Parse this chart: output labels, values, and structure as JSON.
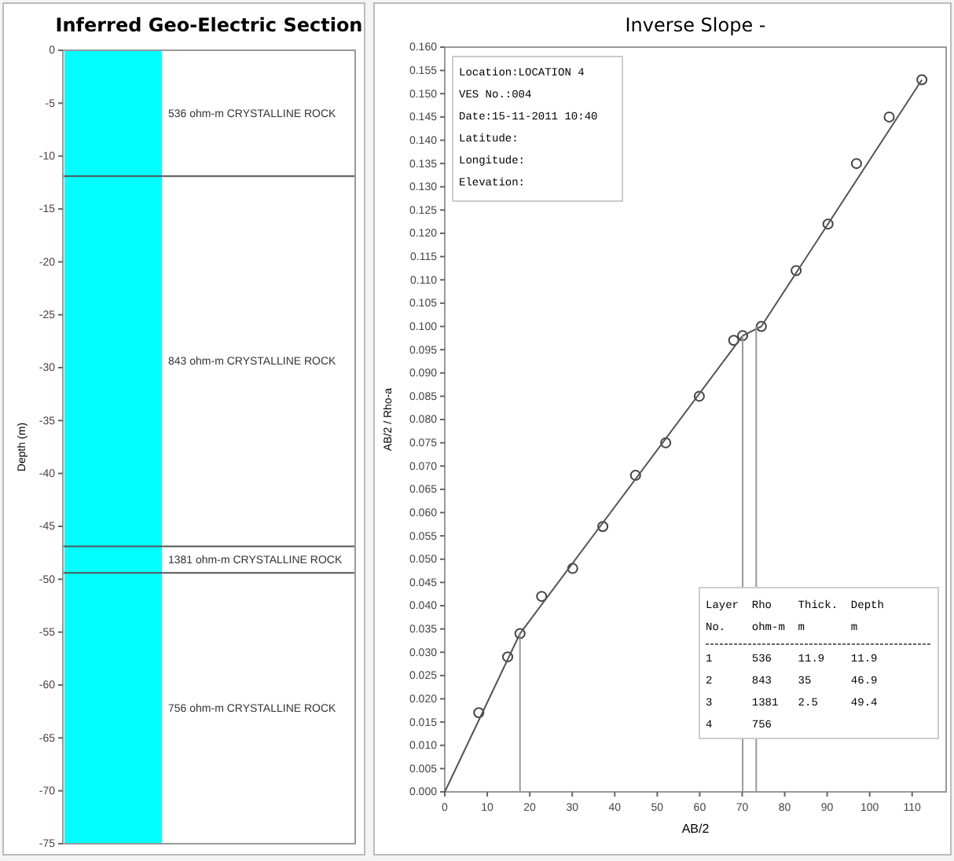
{
  "chart_data": [
    {
      "type": "bar",
      "stacked": true,
      "title": "Inferred Geo-Electric Section",
      "ylabel": "Depth (m)",
      "categories": [
        null
      ],
      "series": [
        {
          "name": "536 ohm-m CRYSTALLINE ROCK",
          "color": "#00ffff",
          "values": [
            -11.9
          ]
        },
        {
          "name": "843 ohm-m CRYSTALLINE ROCK",
          "color": "#00ffff",
          "values": [
            -35
          ]
        },
        {
          "name": "1381 ohm-m CRYSTALLINE ROCK",
          "color": "#00ffff",
          "values": [
            -2.5
          ]
        },
        {
          "name": "756 ohm-m CRYSTALLINE ROCK",
          "color": "#00ffff",
          "values": [
            -25.6
          ]
        }
      ],
      "ylim": [
        -75,
        0
      ],
      "yticks": [
        0,
        -5,
        -10,
        -15,
        -20,
        -25,
        -30,
        -35,
        -40,
        -45,
        -50,
        -55,
        -60,
        -65,
        -70,
        -75
      ],
      "ref_lines": [
        {
          "axis": "y",
          "value": -11.9,
          "color": "#555555"
        },
        {
          "axis": "y",
          "value": -46.9,
          "color": "#555555"
        },
        {
          "axis": "y",
          "value": -49.4,
          "color": "#555555"
        }
      ],
      "legend": false,
      "grid": false
    },
    {
      "type": "scatter",
      "title": "Inverse Slope -",
      "xlabel": "AB/2",
      "ylabel": "AB/2 / Rho-a",
      "marker": "circle",
      "legend": false,
      "grid": false,
      "series": [
        {
          "type": "scatter",
          "color": "#444444",
          "x": [
            8.0,
            14.8,
            17.7,
            22.8,
            30.1,
            37.2,
            44.9,
            52.0,
            59.9,
            68.0,
            70.1,
            74.5,
            82.7,
            90.2,
            96.9,
            104.6,
            112.3
          ],
          "values": [
            0.017,
            0.029,
            0.034,
            0.042,
            0.048,
            0.057,
            0.068,
            0.075,
            0.085,
            0.097,
            0.098,
            0.1,
            0.112,
            0.122,
            0.135,
            0.145,
            0.153
          ]
        },
        {
          "type": "line",
          "marker": "none",
          "color": "#555555",
          "x": [
            0,
            17.7,
            70.1,
            74.5,
            112.3
          ],
          "values": [
            0,
            0.034,
            0.098,
            0.1,
            0.153
          ]
        },
        {
          "type": "line",
          "marker": "none",
          "color": "#999999",
          "x": [
            17.7,
            17.7
          ],
          "values": [
            0,
            0.034
          ]
        },
        {
          "type": "line",
          "marker": "none",
          "color": "#999999",
          "x": [
            70.1,
            70.1
          ],
          "values": [
            0,
            0.098
          ]
        },
        {
          "type": "line",
          "marker": "none",
          "color": "#999999",
          "x": [
            73.3,
            73.3
          ],
          "values": [
            0,
            0.1
          ]
        }
      ],
      "xlim": [
        0,
        118
      ],
      "xticks": [
        0,
        10,
        20,
        30,
        40,
        50,
        60,
        70,
        80,
        90,
        100,
        110
      ],
      "ylim": [
        0,
        0.16
      ],
      "yticks": [
        {
          "value": 0,
          "label": "0.000"
        },
        0.005,
        {
          "value": 0.01,
          "label": "0.010"
        },
        0.015,
        {
          "value": 0.02,
          "label": "0.020"
        },
        0.025,
        {
          "value": 0.03,
          "label": "0.030"
        },
        0.035,
        {
          "value": 0.04,
          "label": "0.040"
        },
        0.045,
        {
          "value": 0.05,
          "label": "0.050"
        },
        0.055,
        {
          "value": 0.06,
          "label": "0.060"
        },
        0.065,
        {
          "value": 0.07,
          "label": "0.070"
        },
        0.075,
        {
          "value": 0.08,
          "label": "0.080"
        },
        0.085,
        {
          "value": 0.09,
          "label": "0.090"
        },
        0.095,
        {
          "value": 0.1,
          "label": "0.100"
        },
        0.105,
        {
          "value": 0.11,
          "label": "0.110"
        },
        0.115,
        {
          "value": 0.12,
          "label": "0.120"
        },
        0.125,
        {
          "value": 0.13,
          "label": "0.130"
        },
        0.135,
        {
          "value": 0.14,
          "label": "0.140"
        },
        0.145,
        {
          "value": 0.15,
          "label": "0.150"
        },
        0.155,
        {
          "value": 0.16,
          "label": "0.160"
        }
      ],
      "annotations": [
        "Location:LOCATION 4",
        "VES No.:004",
        "Date:15-11-2011 10:40",
        "Latitude:",
        "Longitude:",
        "Elevation:",
        "Layer  Rho    Thick.  Depth",
        "No.    ohm-m  m       m",
        "1      536    11.9    11.9",
        "2      843    35      46.9",
        "3      1381   2.5     49.4",
        "4      756"
      ]
    }
  ]
}
